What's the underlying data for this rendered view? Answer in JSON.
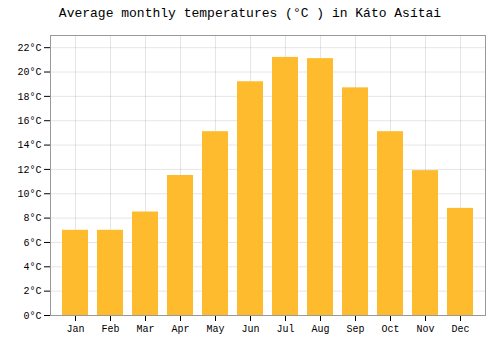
{
  "chart_data": {
    "type": "bar",
    "title": "Average monthly temperatures (°C ) in Káto Asítai",
    "categories": [
      "Jan",
      "Feb",
      "Mar",
      "Apr",
      "May",
      "Jun",
      "Jul",
      "Aug",
      "Sep",
      "Oct",
      "Nov",
      "Dec"
    ],
    "values": [
      7.0,
      7.0,
      8.5,
      11.5,
      15.1,
      19.2,
      21.2,
      21.1,
      18.7,
      15.1,
      11.9,
      8.8
    ],
    "color": "#FFBB2E",
    "ylim": [
      0,
      23
    ],
    "yticks": [
      {
        "value": 0,
        "label": "0°C"
      },
      {
        "value": 2,
        "label": "2°C"
      },
      {
        "value": 4,
        "label": "4°C"
      },
      {
        "value": 6,
        "label": "6°C"
      },
      {
        "value": 8,
        "label": "8°C"
      },
      {
        "value": 10,
        "label": "10°C"
      },
      {
        "value": 12,
        "label": "12°C"
      },
      {
        "value": 14,
        "label": "14°C"
      },
      {
        "value": 16,
        "label": "16°C"
      },
      {
        "value": 18,
        "label": "18°C"
      },
      {
        "value": 20,
        "label": "20°C"
      },
      {
        "value": 22,
        "label": "22°C"
      }
    ],
    "grid": true
  }
}
